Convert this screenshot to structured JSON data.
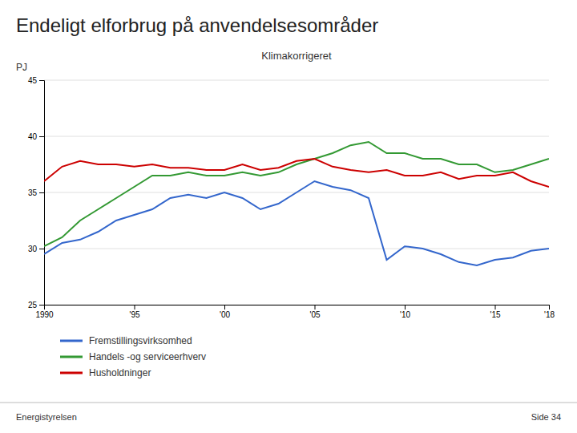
{
  "chart_data": {
    "type": "line",
    "title": "Endeligt elforbrug på anvendelsesområder",
    "subtitle": "Klimakorrigeret",
    "y_label": "PJ",
    "annotations": [
      "Energistyrelsen",
      "Side 34"
    ],
    "x": [
      1990,
      1991,
      1992,
      1993,
      1994,
      1995,
      1996,
      1997,
      1998,
      1999,
      2000,
      2001,
      2002,
      2003,
      2004,
      2005,
      2006,
      2007,
      2008,
      2009,
      2010,
      2011,
      2012,
      2013,
      2014,
      2015,
      2016,
      2017,
      2018
    ],
    "series": [
      {
        "name": "Fremstillingsvirksomhed",
        "color": "#3366cc",
        "values": [
          29.5,
          30.5,
          30.8,
          31.5,
          32.5,
          33.0,
          33.5,
          34.5,
          34.8,
          34.5,
          35.0,
          34.5,
          33.5,
          34.0,
          35.0,
          36.0,
          35.5,
          35.2,
          34.5,
          29.0,
          30.2,
          30.0,
          29.5,
          28.8,
          28.5,
          29.0,
          29.2,
          29.8,
          30.0
        ]
      },
      {
        "name": "Handels -og serviceerhverv",
        "color": "#339933",
        "values": [
          30.2,
          31.0,
          32.5,
          33.5,
          34.5,
          35.5,
          36.5,
          36.5,
          36.8,
          36.5,
          36.5,
          36.8,
          36.5,
          36.8,
          37.5,
          38.0,
          38.5,
          39.2,
          39.5,
          38.5,
          38.5,
          38.0,
          38.0,
          37.5,
          37.5,
          36.8,
          37.0,
          37.5,
          38.0
        ]
      },
      {
        "name": "Husholdninger",
        "color": "#cc0000",
        "values": [
          36.0,
          37.3,
          37.8,
          37.5,
          37.5,
          37.3,
          37.5,
          37.2,
          37.2,
          37.0,
          37.0,
          37.5,
          37.0,
          37.2,
          37.8,
          38.0,
          37.3,
          37.0,
          36.8,
          37.0,
          36.5,
          36.5,
          36.8,
          36.2,
          36.5,
          36.5,
          36.8,
          36.0,
          35.5
        ]
      }
    ],
    "xlim": [
      1990,
      2018
    ],
    "xticks": [
      1990,
      {
        "value": 1995,
        "label": "'95"
      },
      {
        "value": 2000,
        "label": "'00"
      },
      {
        "value": 2005,
        "label": "'05"
      },
      {
        "value": 2010,
        "label": "'10"
      },
      {
        "value": 2015,
        "label": "'15"
      },
      {
        "value": 2018,
        "label": "'18"
      }
    ],
    "ylim": [
      25,
      45
    ],
    "yticks": [
      25,
      30,
      35,
      40,
      45
    ],
    "grid": true,
    "legend": "bottom"
  }
}
